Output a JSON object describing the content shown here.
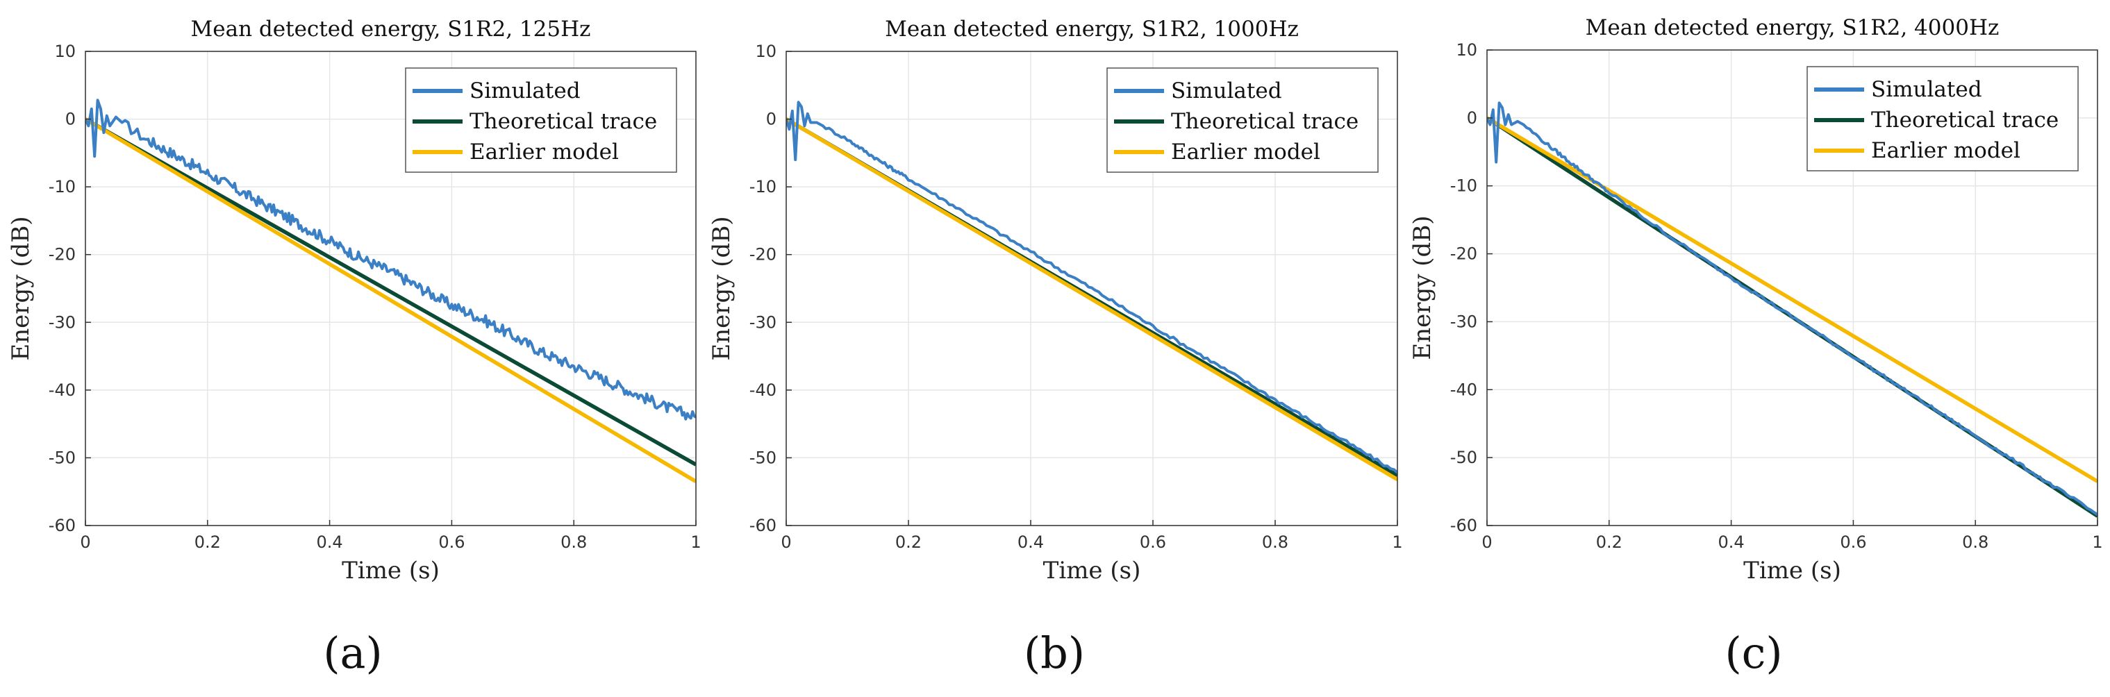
{
  "figure_labels": [
    "(a)",
    "(b)",
    "(c)"
  ],
  "colors": {
    "simulated": "#3b7fc4",
    "theoretical": "#0b4a35",
    "earlier": "#f7b800",
    "grid": "#e6e6e6",
    "axis": "#333333"
  },
  "chart_data": [
    {
      "type": "line",
      "title": "Mean detected energy, S1R2, 125Hz",
      "xlabel": "Time (s)",
      "ylabel": "Energy (dB)",
      "xlim": [
        0,
        1
      ],
      "ylim": [
        -60,
        10
      ],
      "xticks": [
        0,
        0.2,
        0.4,
        0.6,
        0.8,
        1
      ],
      "xtick_labels": [
        "0",
        "0.2",
        "0.4",
        "0.6",
        "0.8",
        "1"
      ],
      "yticks": [
        10,
        0,
        -10,
        -20,
        -30,
        -40,
        -50,
        -60
      ],
      "ytick_labels": [
        "10",
        "0",
        "-10",
        "-20",
        "-30",
        "-40",
        "-50",
        "-60"
      ],
      "grid": true,
      "legend": "top-right",
      "series": [
        {
          "name": "Simulated",
          "color_key": "simulated",
          "kind": "noisy",
          "x": [
            0,
            0.005,
            0.01,
            0.015,
            0.02,
            0.025,
            0.03,
            0.035,
            0.04,
            0.05,
            0.06,
            0.08,
            0.1,
            0.15,
            0.2,
            0.25,
            0.3,
            0.35,
            0.4,
            0.45,
            0.5,
            0.55,
            0.6,
            0.65,
            0.7,
            0.75,
            0.8,
            0.85,
            0.9,
            0.95,
            1.0
          ],
          "y": [
            0,
            -1,
            1.5,
            -5.5,
            2.8,
            1.5,
            -2,
            0.5,
            -1,
            0.3,
            -0.5,
            -1.8,
            -3,
            -5.5,
            -8,
            -10.5,
            -13,
            -15.5,
            -18,
            -20.5,
            -22.5,
            -25,
            -27.5,
            -29.5,
            -32,
            -34.5,
            -36.5,
            -38.5,
            -40.5,
            -42.5,
            -44
          ]
        },
        {
          "name": "Theoretical trace",
          "color_key": "theoretical",
          "kind": "line",
          "x": [
            0,
            1
          ],
          "y": [
            0,
            -51
          ]
        },
        {
          "name": "Earlier model",
          "color_key": "earlier",
          "kind": "line",
          "x": [
            0,
            1
          ],
          "y": [
            0,
            -53.5
          ]
        }
      ]
    },
    {
      "type": "line",
      "title": "Mean detected energy, S1R2, 1000Hz",
      "xlabel": "Time (s)",
      "ylabel": "Energy (dB)",
      "xlim": [
        0,
        1
      ],
      "ylim": [
        -60,
        10
      ],
      "xticks": [
        0,
        0.2,
        0.4,
        0.6,
        0.8,
        1
      ],
      "xtick_labels": [
        "0",
        "0.2",
        "0.4",
        "0.6",
        "0.8",
        "1"
      ],
      "yticks": [
        10,
        0,
        -10,
        -20,
        -30,
        -40,
        -50,
        -60
      ],
      "ytick_labels": [
        "10",
        "0",
        "-10",
        "-20",
        "-30",
        "-40",
        "-50",
        "-60"
      ],
      "grid": true,
      "legend": "top-right",
      "series": [
        {
          "name": "Simulated",
          "color_key": "simulated",
          "kind": "noisy",
          "x": [
            0,
            0.005,
            0.01,
            0.015,
            0.02,
            0.025,
            0.03,
            0.035,
            0.04,
            0.05,
            0.06,
            0.08,
            0.1,
            0.15,
            0.2,
            0.3,
            0.4,
            0.5,
            0.6,
            0.7,
            0.8,
            0.9,
            1.0
          ],
          "y": [
            0,
            -1.5,
            1.2,
            -6,
            2.5,
            1.8,
            -1,
            0.8,
            -0.5,
            -0.5,
            -1,
            -2,
            -3,
            -6,
            -8.8,
            -14.2,
            -19.6,
            -25.0,
            -30.6,
            -36.0,
            -41.4,
            -46.8,
            -52.2
          ]
        },
        {
          "name": "Theoretical trace",
          "color_key": "theoretical",
          "kind": "line",
          "x": [
            0,
            1
          ],
          "y": [
            0,
            -52.6
          ]
        },
        {
          "name": "Earlier model",
          "color_key": "earlier",
          "kind": "line",
          "x": [
            0,
            1
          ],
          "y": [
            0,
            -53.2
          ]
        }
      ]
    },
    {
      "type": "line",
      "title": "Mean detected energy, S1R2, 4000Hz",
      "xlabel": "Time (s)",
      "ylabel": "Energy (dB)",
      "xlim": [
        0,
        1
      ],
      "ylim": [
        -60,
        10
      ],
      "xticks": [
        0,
        0.2,
        0.4,
        0.6,
        0.8,
        1
      ],
      "xtick_labels": [
        "0",
        "0.2",
        "0.4",
        "0.6",
        "0.8",
        "1"
      ],
      "yticks": [
        10,
        0,
        -10,
        -20,
        -30,
        -40,
        -50,
        -60
      ],
      "ytick_labels": [
        "10",
        "0",
        "-10",
        "-20",
        "-30",
        "-40",
        "-50",
        "-60"
      ],
      "grid": true,
      "legend": "top-right",
      "series": [
        {
          "name": "Simulated",
          "color_key": "simulated",
          "kind": "noisy",
          "x": [
            0,
            0.005,
            0.01,
            0.015,
            0.02,
            0.025,
            0.03,
            0.035,
            0.04,
            0.05,
            0.06,
            0.08,
            0.1,
            0.15,
            0.2,
            0.3,
            0.4,
            0.5,
            0.6,
            0.7,
            0.8,
            0.9,
            1.0
          ],
          "y": [
            0,
            -1,
            1.2,
            -6.5,
            2.2,
            1.5,
            -1,
            0.5,
            -1,
            -0.5,
            -1,
            -2.5,
            -4,
            -7.5,
            -11,
            -17.5,
            -23.5,
            -29.3,
            -35.1,
            -41.0,
            -46.8,
            -52.6,
            -58.4
          ]
        },
        {
          "name": "Theoretical trace",
          "color_key": "theoretical",
          "kind": "line",
          "x": [
            0,
            1
          ],
          "y": [
            0,
            -58.6
          ]
        },
        {
          "name": "Earlier model",
          "color_key": "earlier",
          "kind": "line",
          "x": [
            0,
            1
          ],
          "y": [
            0,
            -53.5
          ]
        }
      ]
    }
  ]
}
